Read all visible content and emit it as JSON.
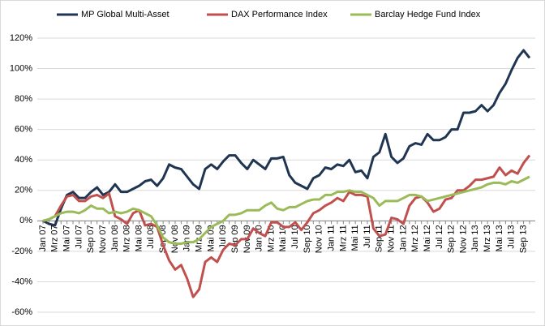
{
  "chart_data": {
    "type": "line",
    "categories": [
      "Jan 07",
      null,
      "Mrz 07",
      null,
      "Mai 07",
      null,
      "Jul 07",
      null,
      "Sep 07",
      null,
      "Nov 07",
      null,
      "Jan 08",
      null,
      "Mrz 08",
      null,
      "Mai 08",
      null,
      "Jul 08",
      null,
      "Sep 08",
      null,
      "Nov 08",
      null,
      "Jan 09",
      null,
      "Mrz 09",
      null,
      "Mai 09",
      null,
      "Jul 09",
      null,
      "Sep 09",
      null,
      "Nov 09",
      null,
      "Jan 10",
      null,
      "Mrz 10",
      null,
      "Mai 10",
      null,
      "Jul 10",
      null,
      "Sep 10",
      null,
      "Nov 10",
      null,
      "Jan 11",
      null,
      "Mrz 11",
      null,
      "Mai 11",
      null,
      "Jul 11",
      null,
      "Sep 11",
      null,
      "Nov 11",
      null,
      "Jan 12",
      null,
      "Mrz 12",
      null,
      "Mai 12",
      null,
      "Jul 12",
      null,
      "Sep 12",
      null,
      "Nov 12",
      null,
      "Jan 13",
      null,
      "Mrz 13",
      null,
      "Mai 13",
      null,
      "Jul 13",
      null,
      "Sep 13",
      null
    ],
    "series": [
      {
        "name": "MP Global Multi-Asset",
        "color": "#1f3552",
        "values": [
          0,
          -2,
          -3,
          8,
          17,
          19,
          15,
          15,
          19,
          22,
          17,
          19,
          24,
          19,
          19,
          21,
          23,
          26,
          27,
          23,
          28,
          37,
          35,
          34,
          29,
          24,
          21,
          34,
          37,
          34,
          39,
          43,
          43,
          38,
          34,
          40,
          37,
          34,
          41,
          41,
          42,
          30,
          25,
          23,
          21,
          28,
          30,
          35,
          34,
          37,
          36,
          40,
          32,
          33,
          28,
          42,
          45,
          57,
          42,
          38,
          41,
          49,
          51,
          50,
          57,
          53,
          53,
          55,
          60,
          60,
          71,
          71,
          72,
          76,
          72,
          76,
          84,
          90,
          99,
          107,
          112,
          107
        ]
      },
      {
        "name": "DAX Performance Index",
        "color": "#c0504d",
        "values": [
          0,
          1,
          3,
          10,
          16,
          17,
          13,
          13,
          16,
          17,
          15,
          18,
          3,
          1,
          -2,
          5,
          7,
          -3,
          -2,
          -4,
          -16,
          -26,
          -32,
          -29,
          -38,
          -50,
          -45,
          -27,
          -24,
          -27,
          -19,
          -15,
          -16,
          -12,
          -12,
          -5,
          -8,
          -10,
          -1,
          -1,
          -4,
          -4,
          -1,
          -6,
          -1,
          5,
          7,
          10,
          12,
          15,
          13,
          19,
          17,
          17,
          16,
          -5,
          -10,
          -9,
          2,
          1,
          -2,
          10,
          15,
          16,
          12,
          6,
          8,
          14,
          15,
          20,
          20,
          23,
          27,
          27,
          28,
          29,
          35,
          30,
          33,
          31,
          38,
          43
        ]
      },
      {
        "name": "Barclay Hedge Fund Index",
        "color": "#9bbb59",
        "values": [
          0,
          1,
          3,
          5,
          6,
          6,
          5,
          7,
          10,
          8,
          8,
          5,
          6,
          5,
          6,
          8,
          7,
          5,
          3,
          -3,
          -11,
          -14,
          -15,
          -15,
          -14,
          -14,
          -12,
          -8,
          -4,
          -2,
          0,
          4,
          4,
          5,
          7,
          7,
          7,
          10,
          12,
          8,
          7,
          9,
          9,
          11,
          13,
          14,
          14,
          17,
          17,
          19,
          19,
          20,
          19,
          19,
          17,
          15,
          10,
          13,
          13,
          13,
          15,
          17,
          17,
          16,
          13,
          14,
          15,
          16,
          17,
          18,
          19,
          20,
          21,
          22,
          24,
          25,
          25,
          24,
          26,
          25,
          27,
          29
        ]
      }
    ],
    "ylim": [
      -60,
      120
    ],
    "yticks": [
      {
        "value": -60,
        "label": "-60%"
      },
      {
        "value": -40,
        "label": "-40%"
      },
      {
        "value": -20,
        "label": "-20%"
      },
      {
        "value": 0,
        "label": "0%"
      },
      {
        "value": 20,
        "label": "20%"
      },
      {
        "value": 40,
        "label": "40%"
      },
      {
        "value": 60,
        "label": "60%"
      },
      {
        "value": 80,
        "label": "80%"
      },
      {
        "value": 100,
        "label": "100%"
      },
      {
        "value": 120,
        "label": "120%"
      }
    ],
    "grid": true,
    "legend": "top"
  }
}
